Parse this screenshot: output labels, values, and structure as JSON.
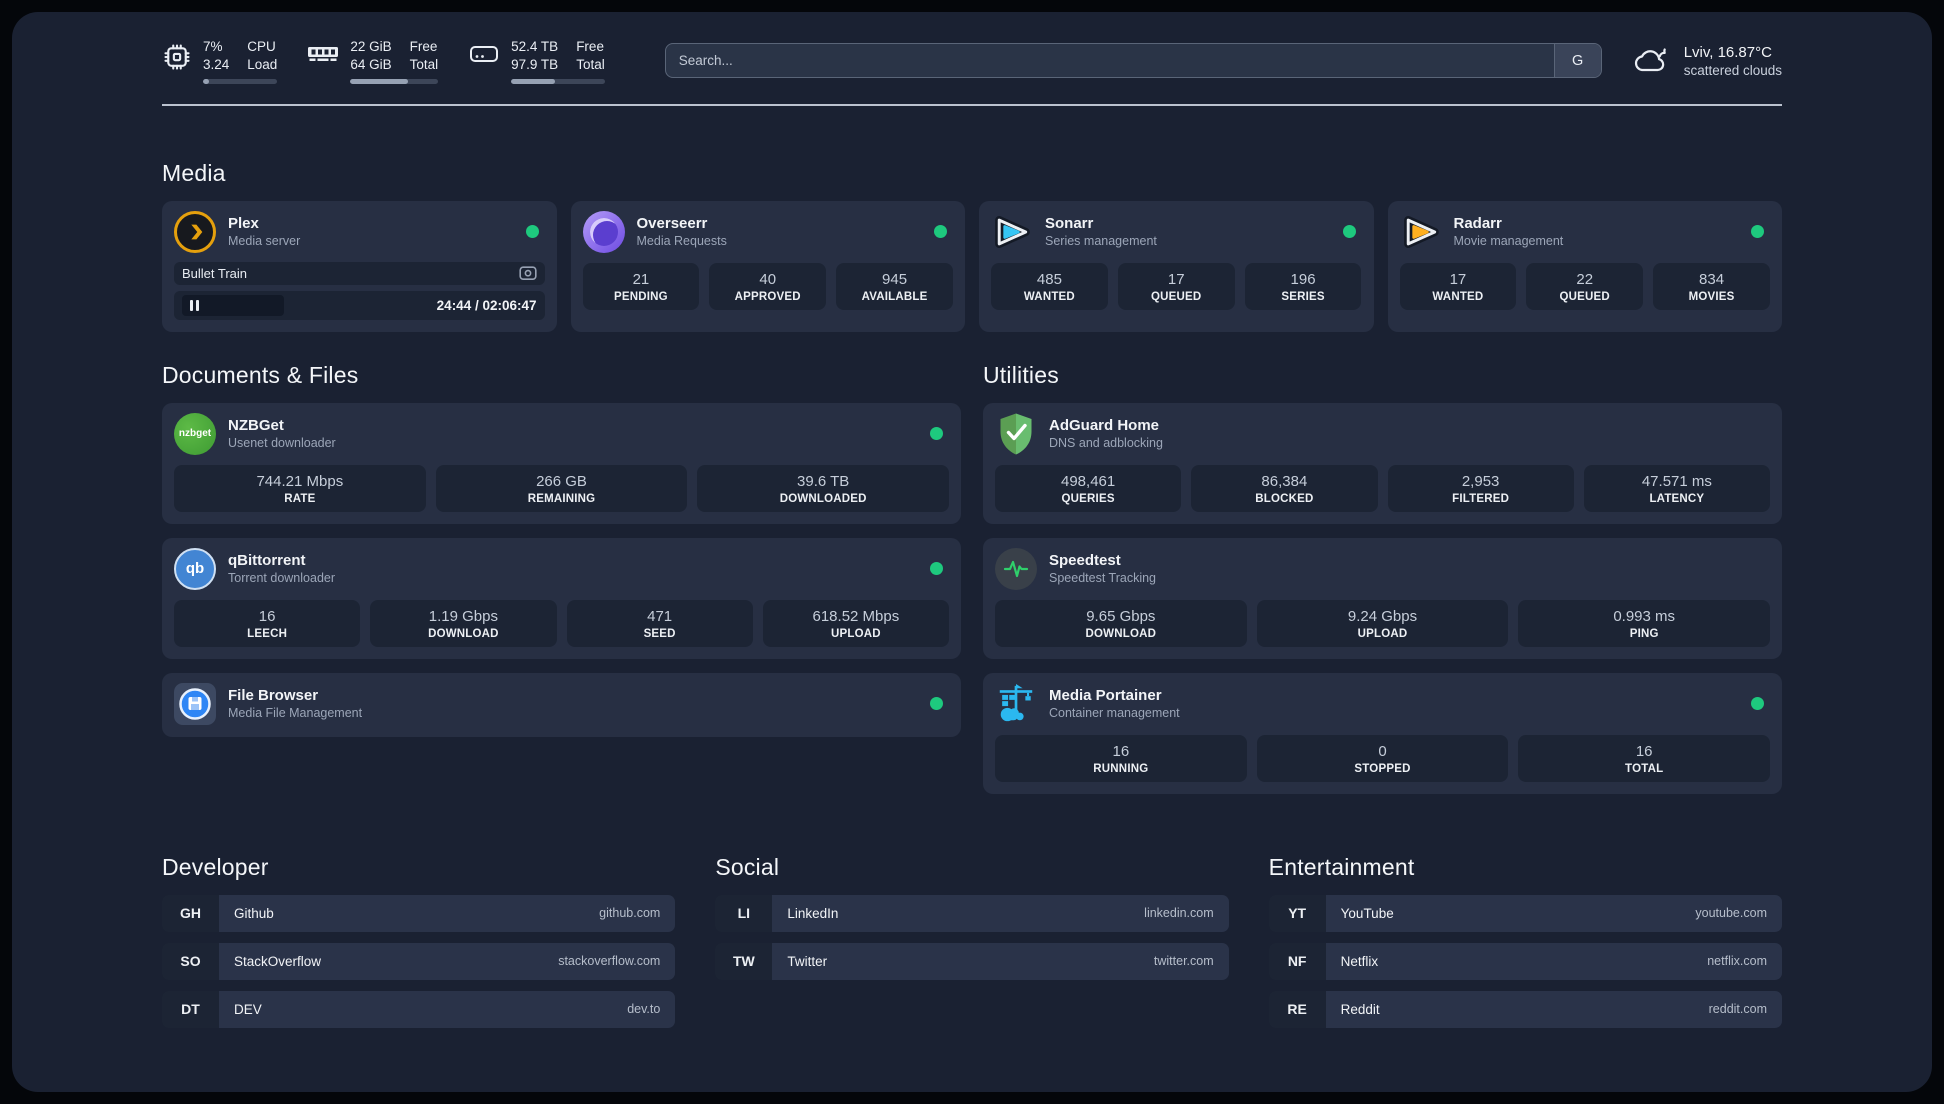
{
  "colors": {
    "status_online": "#1EC97E",
    "accent_plex": "#E5A00D"
  },
  "topbar": {
    "resources": [
      {
        "icon": "cpu-icon",
        "value1": "7%",
        "value2": "3.24",
        "label1": "CPU",
        "label2": "Load",
        "progress_pct": 8
      },
      {
        "icon": "ram-icon",
        "value1": "22 GiB",
        "value2": "64 GiB",
        "label1": "Free",
        "label2": "Total",
        "progress_pct": 66
      },
      {
        "icon": "disk-icon",
        "value1": "52.4 TB",
        "value2": "97.9 TB",
        "label1": "Free",
        "label2": "Total",
        "progress_pct": 47
      }
    ],
    "search": {
      "placeholder": "Search...",
      "button_label": "G"
    },
    "weather": {
      "location_temp": "Lviv, 16.87°C",
      "condition": "scattered clouds"
    }
  },
  "media": {
    "title": "Media",
    "plex": {
      "name": "Plex",
      "desc": "Media server",
      "player": {
        "title": "Bullet Train",
        "time": "24:44 / 02:06:47"
      }
    },
    "overseerr": {
      "name": "Overseerr",
      "desc": "Media Requests",
      "stats": [
        {
          "value": "21",
          "label": "PENDING"
        },
        {
          "value": "40",
          "label": "APPROVED"
        },
        {
          "value": "945",
          "label": "AVAILABLE"
        }
      ]
    },
    "sonarr": {
      "name": "Sonarr",
      "desc": "Series management",
      "stats": [
        {
          "value": "485",
          "label": "WANTED"
        },
        {
          "value": "17",
          "label": "QUEUED"
        },
        {
          "value": "196",
          "label": "SERIES"
        }
      ]
    },
    "radarr": {
      "name": "Radarr",
      "desc": "Movie management",
      "stats": [
        {
          "value": "17",
          "label": "WANTED"
        },
        {
          "value": "22",
          "label": "QUEUED"
        },
        {
          "value": "834",
          "label": "MOVIES"
        }
      ]
    }
  },
  "documents": {
    "title": "Documents & Files",
    "nzbget": {
      "name": "NZBGet",
      "desc": "Usenet downloader",
      "icon_text": "nzbget",
      "stats": [
        {
          "value": "744.21 Mbps",
          "label": "RATE"
        },
        {
          "value": "266 GB",
          "label": "REMAINING"
        },
        {
          "value": "39.6 TB",
          "label": "DOWNLOADED"
        }
      ]
    },
    "qbittorrent": {
      "name": "qBittorrent",
      "desc": "Torrent downloader",
      "icon_text": "qb",
      "stats": [
        {
          "value": "16",
          "label": "LEECH"
        },
        {
          "value": "1.19 Gbps",
          "label": "DOWNLOAD"
        },
        {
          "value": "471",
          "label": "SEED"
        },
        {
          "value": "618.52 Mbps",
          "label": "UPLOAD"
        }
      ]
    },
    "filebrowser": {
      "name": "File Browser",
      "desc": "Media File Management"
    }
  },
  "utilities": {
    "title": "Utilities",
    "adguard": {
      "name": "AdGuard Home",
      "desc": "DNS and adblocking",
      "stats": [
        {
          "value": "498,461",
          "label": "QUERIES"
        },
        {
          "value": "86,384",
          "label": "BLOCKED"
        },
        {
          "value": "2,953",
          "label": "FILTERED"
        },
        {
          "value": "47.571 ms",
          "label": "LATENCY"
        }
      ]
    },
    "speedtest": {
      "name": "Speedtest",
      "desc": "Speedtest Tracking",
      "stats": [
        {
          "value": "9.65 Gbps",
          "label": "DOWNLOAD"
        },
        {
          "value": "9.24 Gbps",
          "label": "UPLOAD"
        },
        {
          "value": "0.993 ms",
          "label": "PING"
        }
      ]
    },
    "portainer": {
      "name": "Media Portainer",
      "desc": "Container management",
      "stats": [
        {
          "value": "16",
          "label": "RUNNING"
        },
        {
          "value": "0",
          "label": "STOPPED"
        },
        {
          "value": "16",
          "label": "TOTAL"
        }
      ]
    }
  },
  "bookmarks": {
    "developer": {
      "title": "Developer",
      "items": [
        {
          "abbr": "GH",
          "name": "Github",
          "url": "github.com"
        },
        {
          "abbr": "SO",
          "name": "StackOverflow",
          "url": "stackoverflow.com"
        },
        {
          "abbr": "DT",
          "name": "DEV",
          "url": "dev.to"
        }
      ]
    },
    "social": {
      "title": "Social",
      "items": [
        {
          "abbr": "LI",
          "name": "LinkedIn",
          "url": "linkedin.com"
        },
        {
          "abbr": "TW",
          "name": "Twitter",
          "url": "twitter.com"
        }
      ]
    },
    "entertainment": {
      "title": "Entertainment",
      "items": [
        {
          "abbr": "YT",
          "name": "YouTube",
          "url": "youtube.com"
        },
        {
          "abbr": "NF",
          "name": "Netflix",
          "url": "netflix.com"
        },
        {
          "abbr": "RE",
          "name": "Reddit",
          "url": "reddit.com"
        }
      ]
    }
  }
}
